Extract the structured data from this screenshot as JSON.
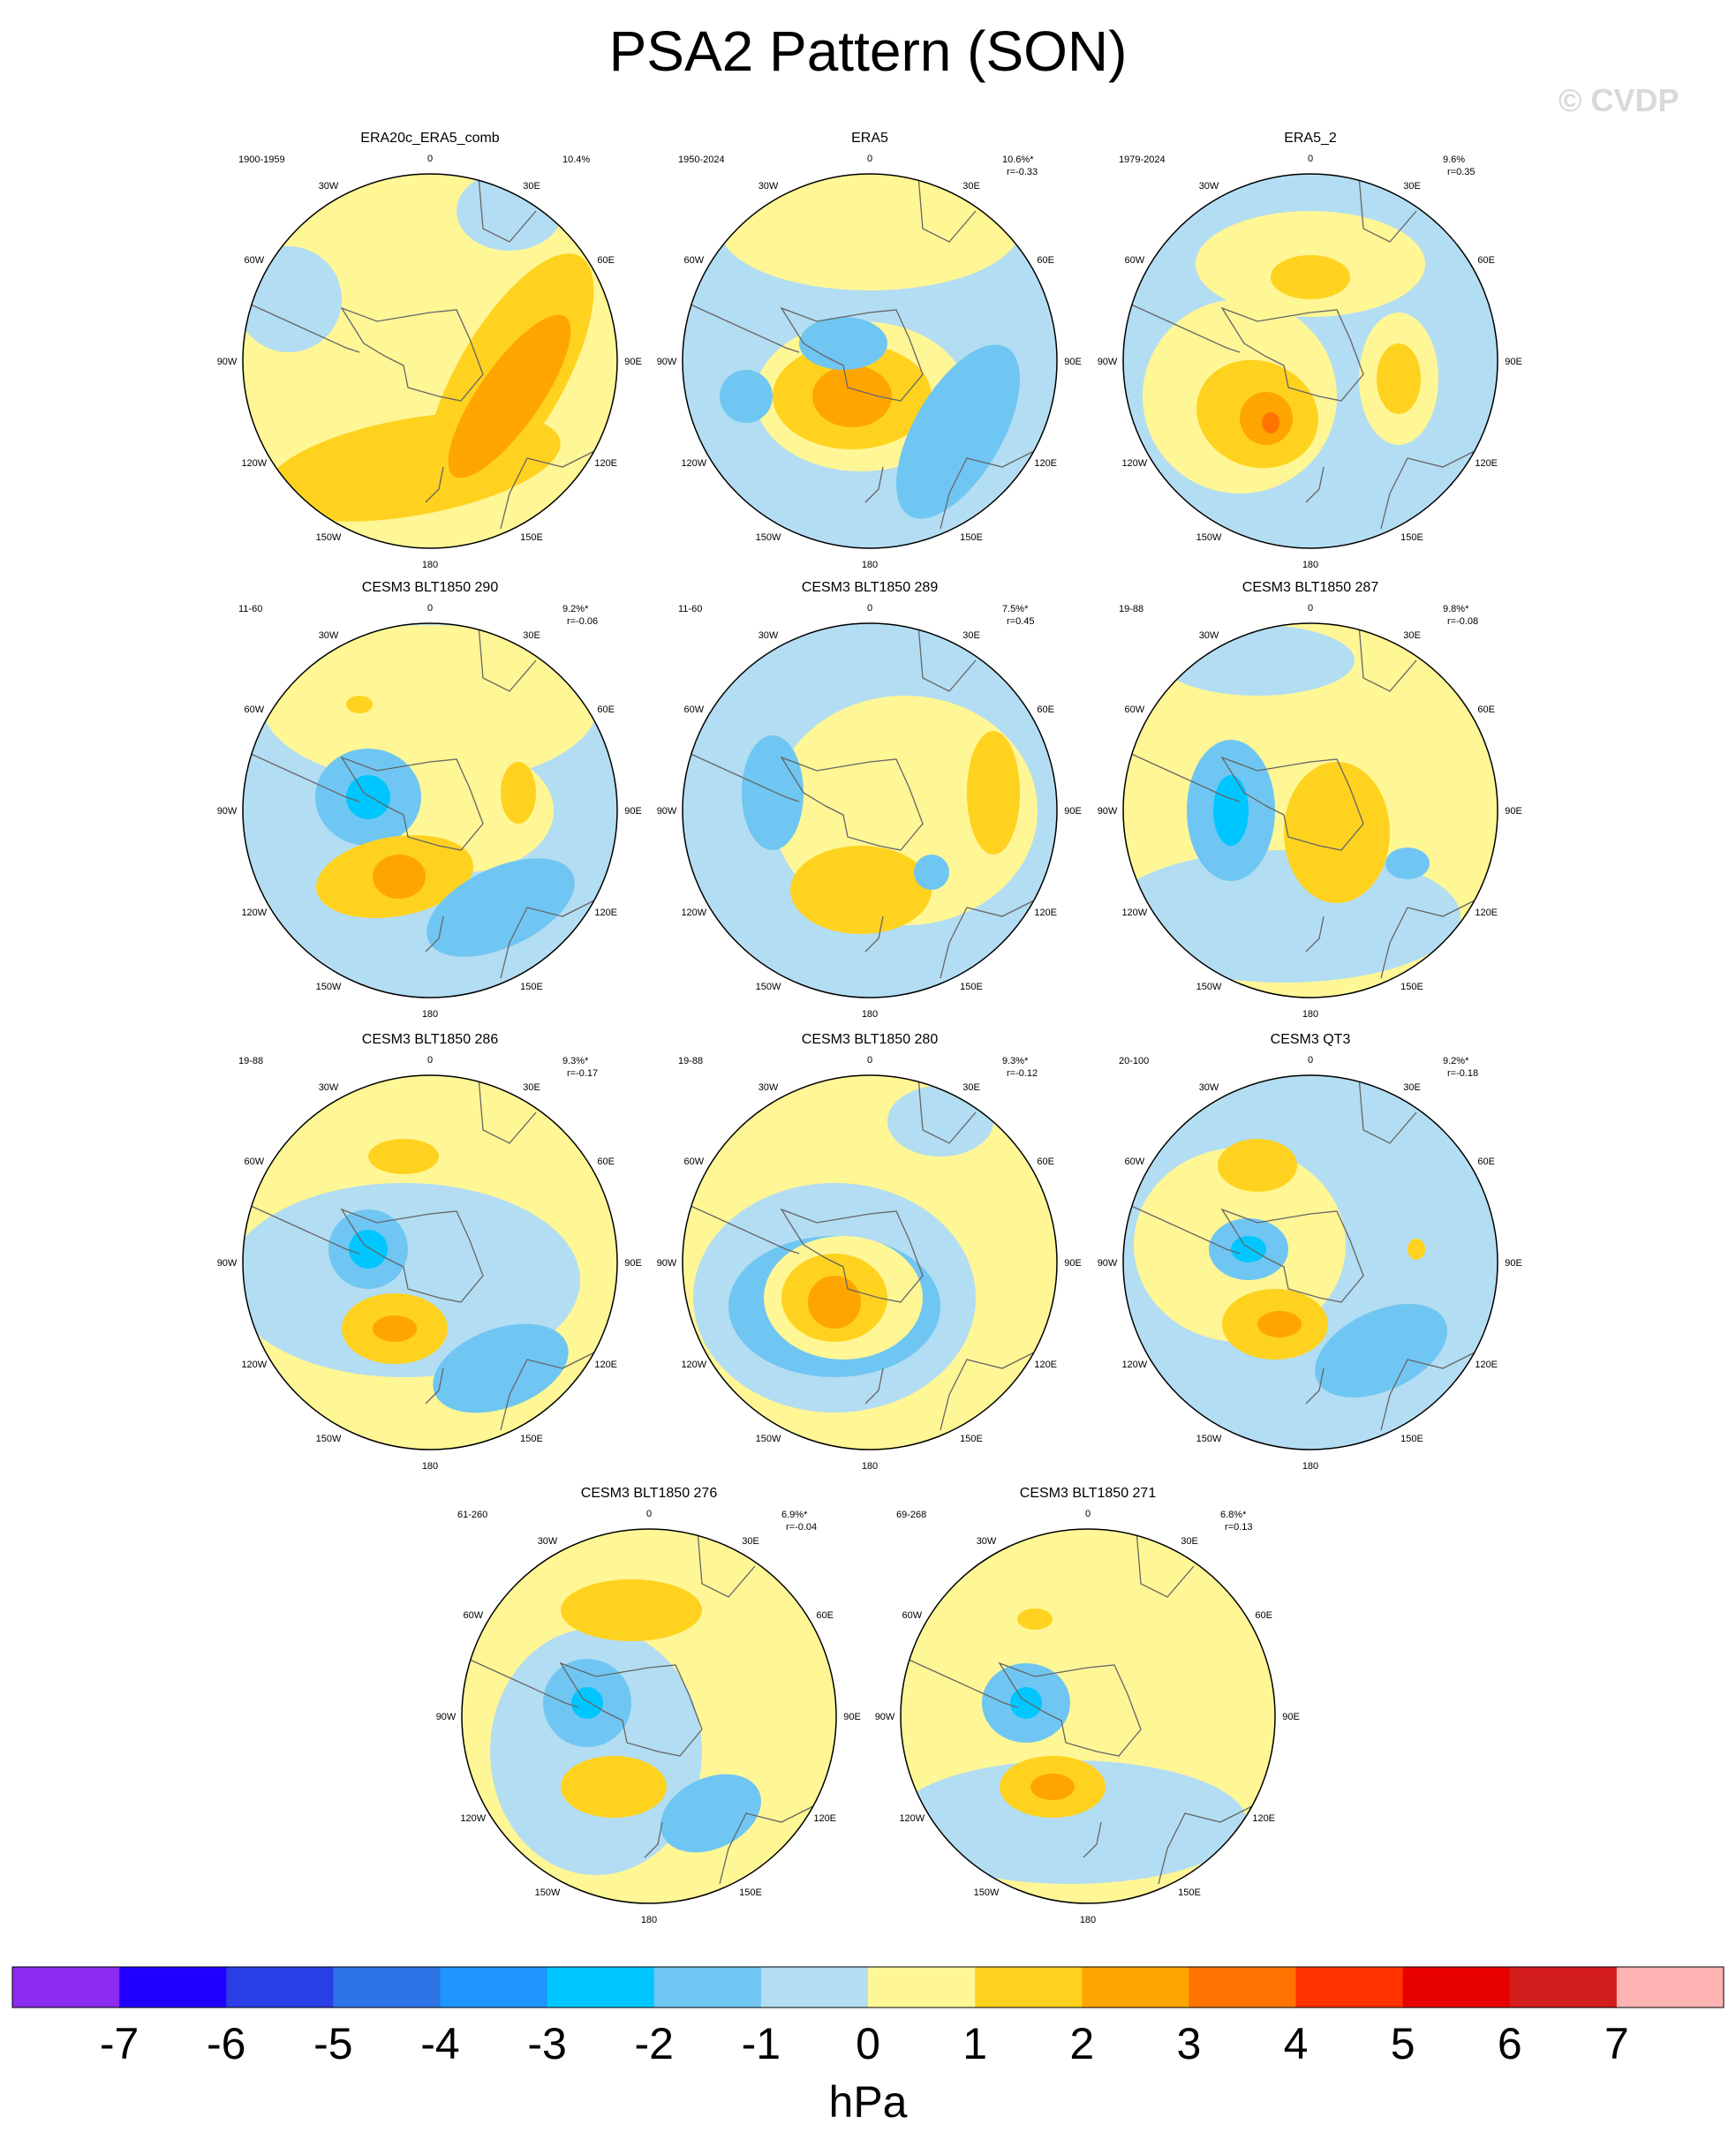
{
  "title": "PSA2 Pattern (SON)",
  "watermark": "© CVDP",
  "colorbar": {
    "colors": [
      "#8b2af0",
      "#2200ff",
      "#2a3ee6",
      "#2e73e6",
      "#1e95ff",
      "#00c6ff",
      "#6fc6f2",
      "#b3ddf2",
      "#fff696",
      "#ffd21f",
      "#ffa500",
      "#ff7400",
      "#ff3200",
      "#e80000",
      "#d31c1c",
      "#ffb3b3"
    ],
    "ticks": [
      "-7",
      "-6",
      "-5",
      "-4",
      "-3",
      "-2",
      "-1",
      "0",
      "1",
      "2",
      "3",
      "4",
      "5",
      "6",
      "7"
    ],
    "unit": "hPa"
  },
  "panels": [
    {
      "title": "ERA20c_ERA5_comb",
      "period": "1900-1959",
      "pct": "10.4%",
      "r": ""
    },
    {
      "title": "ERA5",
      "period": "1950-2024",
      "pct": "10.6%*",
      "r": "r=-0.33"
    },
    {
      "title": "ERA5_2",
      "period": "1979-2024",
      "pct": "9.6%",
      "r": "r=0.35"
    },
    {
      "title": "CESM3 BLT1850 290",
      "period": "11-60",
      "pct": "9.2%*",
      "r": "r=-0.06"
    },
    {
      "title": "CESM3 BLT1850 289",
      "period": "11-60",
      "pct": "7.5%*",
      "r": "r=0.45"
    },
    {
      "title": "CESM3 BLT1850 287",
      "period": "19-88",
      "pct": "9.8%*",
      "r": "r=-0.08"
    },
    {
      "title": "CESM3 BLT1850 286",
      "period": "19-88",
      "pct": "9.3%*",
      "r": "r=-0.17"
    },
    {
      "title": "CESM3 BLT1850 280",
      "period": "19-88",
      "pct": "9.3%*",
      "r": "r=-0.12"
    },
    {
      "title": "CESM3 QT3",
      "period": "20-100",
      "pct": "9.2%*",
      "r": "r=-0.18"
    },
    {
      "title": "CESM3 BLT1850 276",
      "period": "61-260",
      "pct": "6.9%*",
      "r": "r=-0.04"
    },
    {
      "title": "CESM3 BLT1850 271",
      "period": "69-268",
      "pct": "6.8%*",
      "r": "r=0.13"
    }
  ],
  "lon_labels": [
    "0",
    "30E",
    "60E",
    "90E",
    "120E",
    "150E",
    "180",
    "150W",
    "120W",
    "90W",
    "60W",
    "30W"
  ]
}
